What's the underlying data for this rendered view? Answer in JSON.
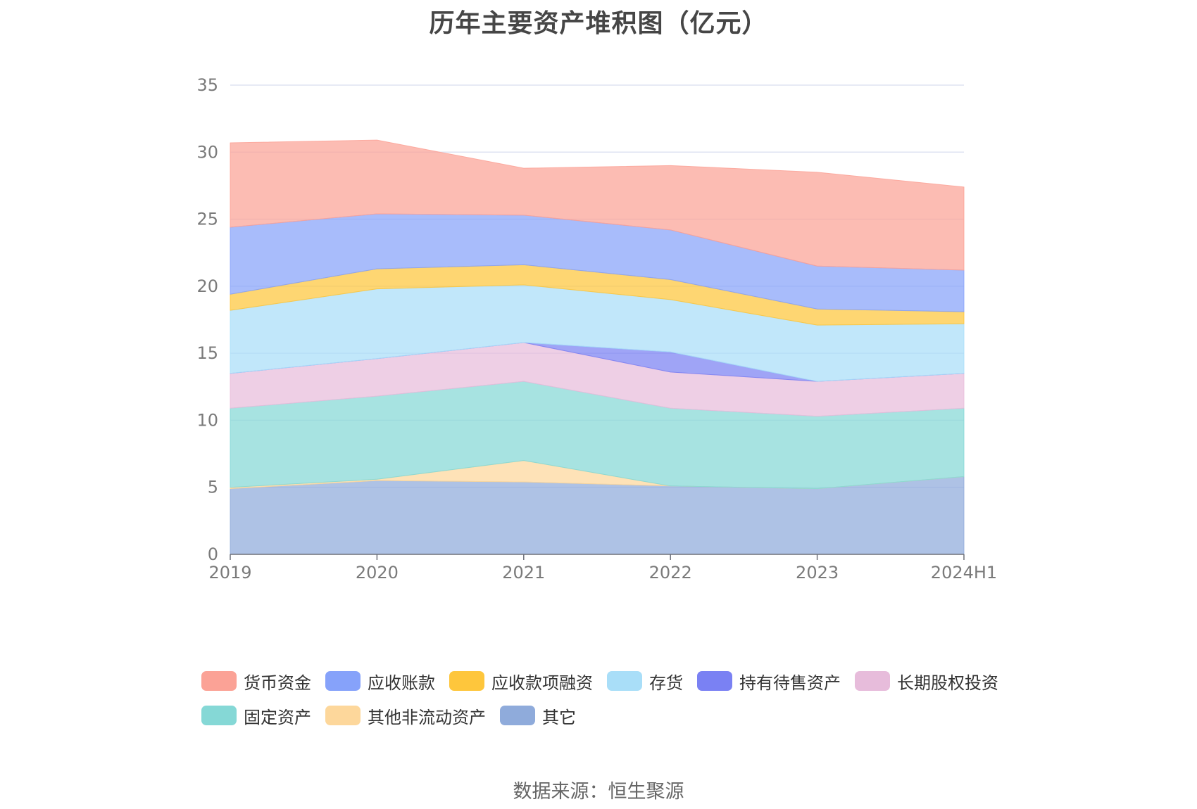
{
  "chart_data": {
    "type": "area",
    "stacked": true,
    "title": "历年主要资产堆积图（亿元）",
    "x": [
      "2019",
      "2020",
      "2021",
      "2022",
      "2023",
      "2024H1"
    ],
    "ylim": [
      0,
      35
    ],
    "yticks": [
      0,
      5,
      10,
      15,
      20,
      25,
      30,
      35
    ],
    "grid": true,
    "legend_position": "bottom",
    "series": [
      {
        "name": "其它",
        "color": "#8fabdb",
        "values": [
          4.9,
          5.5,
          5.4,
          5.1,
          4.9,
          5.8
        ]
      },
      {
        "name": "其他非流动资产",
        "color": "#fdd79b",
        "values": [
          0.1,
          0.1,
          1.6,
          0.0,
          0.0,
          0.0
        ]
      },
      {
        "name": "固定资产",
        "color": "#85d8d6",
        "values": [
          5.9,
          6.2,
          5.9,
          5.8,
          5.4,
          5.1
        ]
      },
      {
        "name": "长期股权投资",
        "color": "#e7bcdb",
        "values": [
          2.6,
          2.8,
          2.9,
          2.7,
          2.6,
          2.6
        ]
      },
      {
        "name": "持有待售资产",
        "color": "#7a81f3",
        "values": [
          0.0,
          0.0,
          0.0,
          1.5,
          0.0,
          0.0
        ]
      },
      {
        "name": "存货",
        "color": "#a9def8",
        "values": [
          4.7,
          5.2,
          4.3,
          3.9,
          4.2,
          3.7
        ]
      },
      {
        "name": "应收款项融资",
        "color": "#fec63c",
        "values": [
          1.2,
          1.5,
          1.5,
          1.5,
          1.2,
          0.9
        ]
      },
      {
        "name": "应收账款",
        "color": "#86a2fa",
        "values": [
          5.0,
          4.1,
          3.7,
          3.7,
          3.2,
          3.1
        ]
      },
      {
        "name": "货币资金",
        "color": "#fba296",
        "values": [
          6.3,
          5.5,
          3.5,
          4.8,
          7.0,
          6.2
        ]
      }
    ]
  },
  "legend_order": [
    "货币资金",
    "应收账款",
    "应收款项融资",
    "存货",
    "持有待售资产",
    "长期股权投资",
    "固定资产",
    "其他非流动资产",
    "其它"
  ],
  "source": "数据来源：恒生聚源"
}
